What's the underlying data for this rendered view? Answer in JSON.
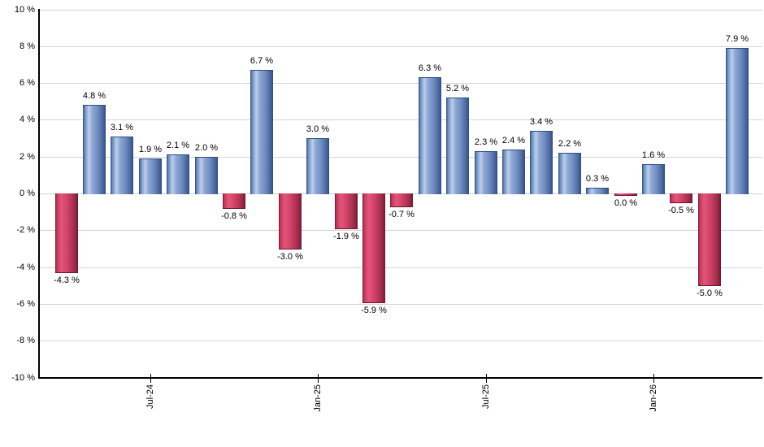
{
  "chart_data": {
    "type": "bar",
    "title": "",
    "bars": [
      {
        "value": -4.3,
        "label": "-4.3 %",
        "polarity": "negative"
      },
      {
        "value": 4.8,
        "label": "4.8 %",
        "polarity": "positive"
      },
      {
        "value": 3.1,
        "label": "3.1 %",
        "polarity": "positive"
      },
      {
        "value": 1.9,
        "label": "1.9 %",
        "polarity": "positive"
      },
      {
        "value": 2.1,
        "label": "2.1 %",
        "polarity": "positive"
      },
      {
        "value": 2.0,
        "label": "2.0 %",
        "polarity": "positive"
      },
      {
        "value": -0.8,
        "label": "-0.8 %",
        "polarity": "negative"
      },
      {
        "value": 6.7,
        "label": "6.7 %",
        "polarity": "positive"
      },
      {
        "value": -3.0,
        "label": "-3.0 %",
        "polarity": "negative"
      },
      {
        "value": 3.0,
        "label": "3.0 %",
        "polarity": "positive"
      },
      {
        "value": -1.9,
        "label": "-1.9 %",
        "polarity": "negative"
      },
      {
        "value": -5.9,
        "label": "-5.9 %",
        "polarity": "negative"
      },
      {
        "value": -0.7,
        "label": "-0.7 %",
        "polarity": "negative"
      },
      {
        "value": 6.3,
        "label": "6.3 %",
        "polarity": "positive"
      },
      {
        "value": 5.2,
        "label": "5.2 %",
        "polarity": "positive"
      },
      {
        "value": 2.3,
        "label": "2.3 %",
        "polarity": "positive"
      },
      {
        "value": 2.4,
        "label": "2.4 %",
        "polarity": "positive"
      },
      {
        "value": 3.4,
        "label": "3.4 %",
        "polarity": "positive"
      },
      {
        "value": 2.2,
        "label": "2.2 %",
        "polarity": "positive"
      },
      {
        "value": 0.3,
        "label": "0.3 %",
        "polarity": "positive"
      },
      {
        "value": 0.0,
        "label": "0.0 %",
        "polarity": "negative"
      },
      {
        "value": 1.6,
        "label": "1.6 %",
        "polarity": "positive"
      },
      {
        "value": -0.5,
        "label": "-0.5 %",
        "polarity": "negative"
      },
      {
        "value": -5.0,
        "label": "-5.0 %",
        "polarity": "negative"
      },
      {
        "value": 7.9,
        "label": "7.9 %",
        "polarity": "positive"
      }
    ],
    "y_axis": {
      "ylim": [
        -10,
        10
      ],
      "tick_values": [
        10,
        8,
        6,
        4,
        2,
        0,
        -2,
        -4,
        -6,
        -8,
        -10
      ],
      "tick_labels": [
        "10 %",
        "8 %",
        "6 %",
        "4 %",
        "2 %",
        "0 %",
        "-2 %",
        "-4 %",
        "-6 %",
        "-8 %",
        "-10 %"
      ],
      "grid": true
    },
    "x_axis": {
      "tick_labels": [
        "Jul-24",
        "Jan-25",
        "Jul-25",
        "Jan-26"
      ],
      "tick_bar_indices": [
        3,
        9,
        15,
        21
      ]
    },
    "legend": null,
    "colors": {
      "background": "#ffffff",
      "gridline": "#d4d4d4",
      "axis": "#000000",
      "label_text": "#000000",
      "positive": {
        "darkest": "#2e4c7e",
        "dark": "#4a689f",
        "mid": "#7391c5",
        "mid2": "#8ca6d3",
        "light": "#bccfec",
        "edge": "#6687bb"
      },
      "negative": {
        "darkest": "#6d1730",
        "dark": "#9a2847",
        "mid": "#c23c5e",
        "mid2": "#d94a6f",
        "light": "#e65478",
        "edge": "#c03a5c"
      }
    }
  }
}
